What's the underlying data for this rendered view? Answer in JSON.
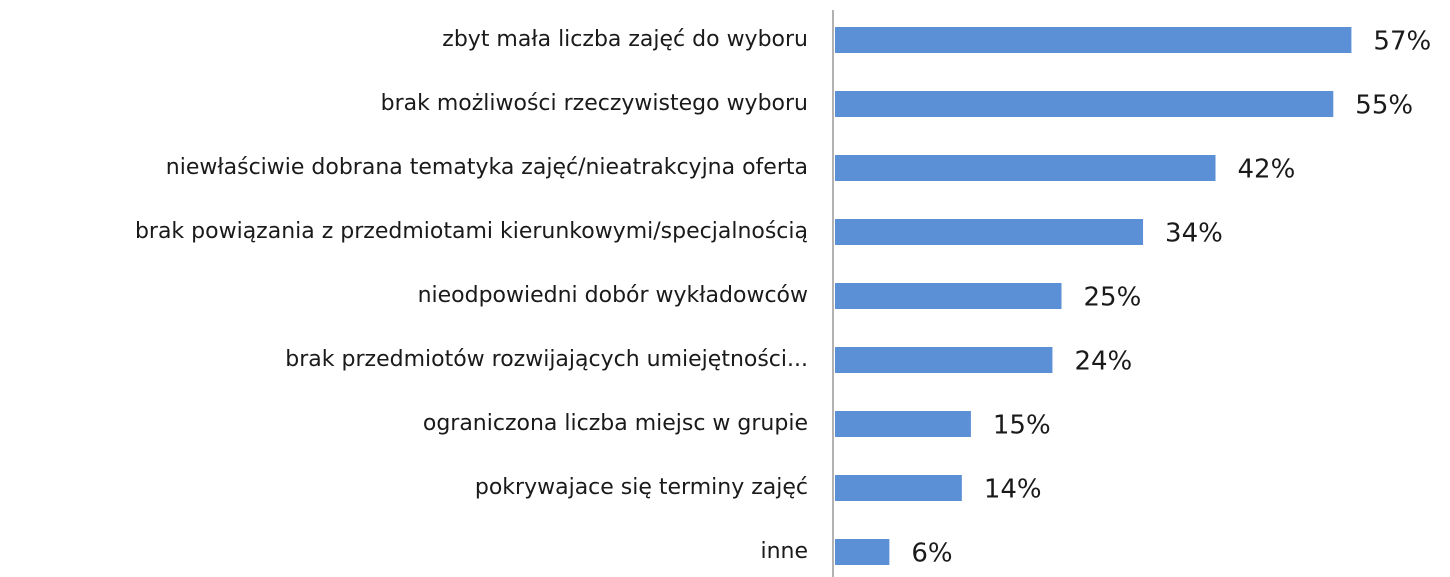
{
  "chart_data": {
    "type": "bar",
    "orientation": "horizontal",
    "categories": [
      "zbyt mała liczba zajęć do wyboru",
      "brak możliwości rzeczywistego wyboru",
      "niewłaściwie dobrana tematyka zajęć/nieatrakcyjna oferta",
      "brak powiązania z przedmiotami kierunkowymi/specjalnością",
      "nieodpowiedni dobór wykładowców",
      "brak przedmiotów rozwijających umiejętności...",
      "ograniczona liczba miejsc w grupie",
      "pokrywajace się terminy zajęć",
      "inne"
    ],
    "values": [
      57,
      55,
      42,
      34,
      25,
      24,
      15,
      14,
      6
    ],
    "value_labels": [
      "57%",
      "55%",
      "42%",
      "34%",
      "25%",
      "24%",
      "15%",
      "14%",
      "6%"
    ],
    "color": "#5b8fd6"
  }
}
